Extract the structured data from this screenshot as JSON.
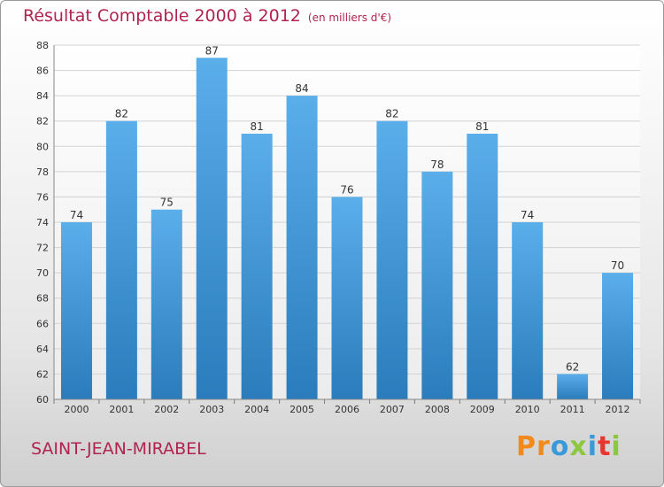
{
  "header": {
    "title": "Résultat Comptable 2000 à 2012",
    "unit": "(en milliers d'€)"
  },
  "footer": {
    "commune": "SAINT-JEAN-MIRABEL",
    "logo_letters": [
      "P",
      "r",
      "o",
      "x",
      "i",
      "t",
      "i"
    ]
  },
  "colors": {
    "title": "#b0244f",
    "bar_top": "#5aaeea",
    "bar_bottom": "#2a7cbb",
    "logo": [
      "#f08a1c",
      "#f08a1c",
      "#3a9ad9",
      "#8dc63f",
      "#3a9ad9",
      "#e8352e",
      "#8dc63f"
    ]
  },
  "chart_data": {
    "type": "bar",
    "title": "Résultat Comptable 2000 à 2012",
    "subtitle": "(en milliers d'€)",
    "categories": [
      "2000",
      "2001",
      "2002",
      "2003",
      "2004",
      "2005",
      "2006",
      "2007",
      "2008",
      "2009",
      "2010",
      "2011",
      "2012"
    ],
    "values": [
      74,
      82,
      75,
      87,
      81,
      84,
      76,
      82,
      78,
      81,
      74,
      62,
      70
    ],
    "ylim": [
      60,
      88
    ],
    "yticks": [
      60,
      62,
      64,
      66,
      68,
      70,
      72,
      74,
      76,
      78,
      80,
      82,
      84,
      86,
      88
    ],
    "grid": true
  }
}
